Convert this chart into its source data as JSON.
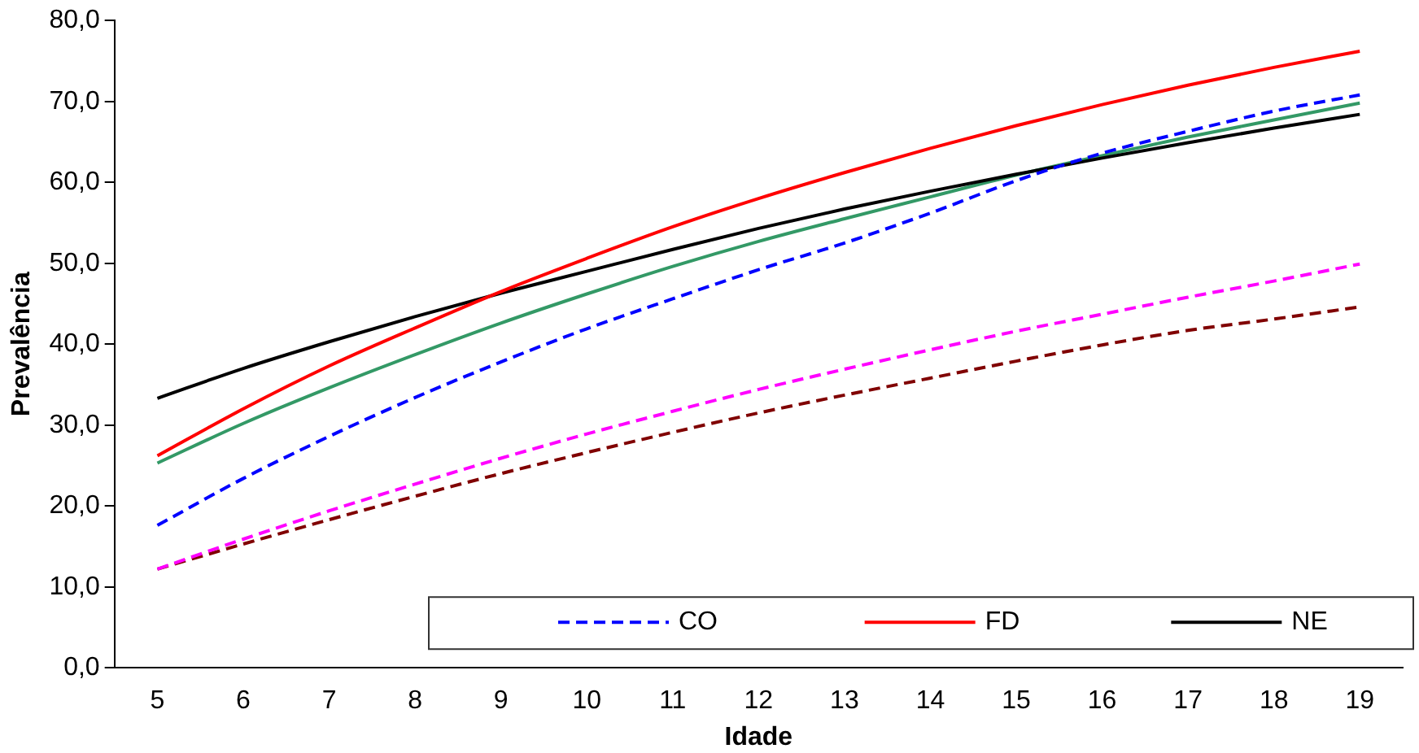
{
  "chart_data": {
    "type": "line",
    "xlabel": "Idade",
    "ylabel": "Prevalência",
    "categories": [
      "5",
      "6",
      "7",
      "8",
      "9",
      "10",
      "11",
      "12",
      "13",
      "14",
      "15",
      "16",
      "17",
      "18",
      "19"
    ],
    "series": [
      {
        "name": "CO",
        "color": "#0000ff",
        "line_style": "dashed",
        "values": [
          17.6,
          23.4,
          28.6,
          33.4,
          37.8,
          41.9,
          45.6,
          49.2,
          52.5,
          56.2,
          60.2,
          63.6,
          66.3,
          68.8,
          70.8
        ]
      },
      {
        "name": "FD",
        "color": "#ff0000",
        "line_style": "solid",
        "values": [
          26.2,
          32,
          37.3,
          42,
          46.5,
          50.6,
          54.5,
          58,
          61.2,
          64.2,
          67,
          69.6,
          72,
          74.2,
          76.2
        ]
      },
      {
        "name": "NE",
        "color": "#000000",
        "line_style": "solid",
        "values": [
          33.3,
          37,
          40.3,
          43.4,
          46.3,
          49,
          51.7,
          54.3,
          56.7,
          58.9,
          61,
          63,
          64.9,
          66.7,
          68.4
        ]
      },
      {
        "color": "#339966",
        "line_style": "solid",
        "values": [
          25.3,
          30.2,
          34.6,
          38.7,
          42.6,
          46.2,
          49.6,
          52.7,
          55.5,
          58.2,
          60.9,
          63.3,
          65.6,
          67.7,
          69.8
        ]
      },
      {
        "color": "#ff00ff",
        "line_style": "dashed",
        "values": [
          12.2,
          15.9,
          19.4,
          22.7,
          25.9,
          28.9,
          31.7,
          34.4,
          36.9,
          39.3,
          41.6,
          43.7,
          45.8,
          47.8,
          49.9
        ]
      },
      {
        "color": "#800000",
        "line_style": "dashed",
        "values": [
          12.2,
          15.3,
          18.3,
          21.2,
          24,
          26.6,
          29.1,
          31.5,
          33.7,
          35.8,
          37.9,
          39.9,
          41.7,
          43.1,
          44.6
        ]
      }
    ],
    "ylim": [
      0,
      80
    ],
    "yticks": [
      {
        "value": 0,
        "label": "0,0"
      },
      {
        "value": 10,
        "label": "10,0"
      },
      {
        "value": 20,
        "label": "20,0"
      },
      {
        "value": 30,
        "label": "30,0"
      },
      {
        "value": 40,
        "label": "40,0"
      },
      {
        "value": 50,
        "label": "50,0"
      },
      {
        "value": 60,
        "label": "60,0"
      },
      {
        "value": 70,
        "label": "70,0"
      },
      {
        "value": 80,
        "label": "80,0"
      }
    ],
    "grid": false,
    "legend": "bottom",
    "marker": "none"
  }
}
